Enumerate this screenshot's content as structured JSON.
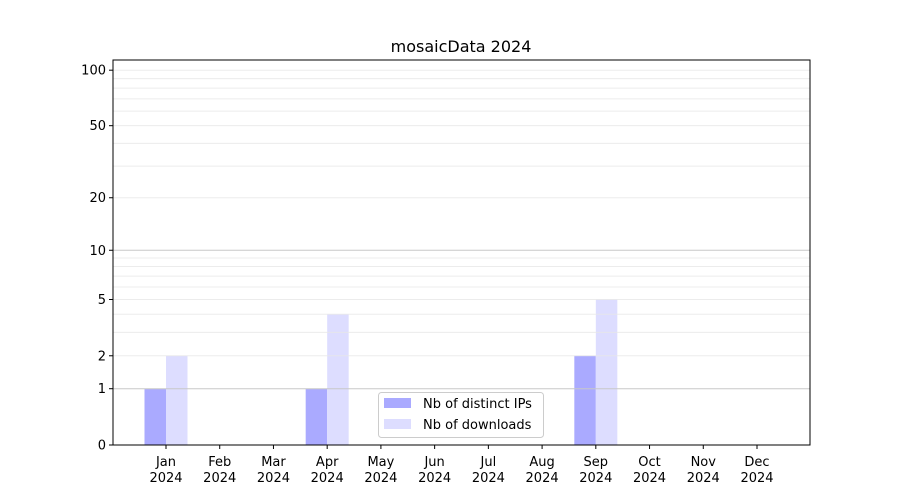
{
  "chart_data": {
    "type": "bar",
    "title": "mosaicData 2024",
    "xlabel": "",
    "ylabel": "",
    "yscale": "log10(1+y)",
    "ylim": [
      0,
      113
    ],
    "yticks": [
      0,
      1,
      2,
      5,
      10,
      20,
      50,
      100
    ],
    "grid": true,
    "legend_position": "lower-center",
    "categories": [
      "Jan\n2024",
      "Feb\n2024",
      "Mar\n2024",
      "Apr\n2024",
      "May\n2024",
      "Jun\n2024",
      "Jul\n2024",
      "Aug\n2024",
      "Sep\n2024",
      "Oct\n2024",
      "Nov\n2024",
      "Dec\n2024"
    ],
    "series": [
      {
        "name": "Nb of distinct IPs",
        "color": "#aaaaff",
        "values": [
          1,
          0,
          0,
          1,
          0,
          0,
          0,
          0,
          2,
          0,
          0,
          0
        ]
      },
      {
        "name": "Nb of downloads",
        "color": "#ddddff",
        "values": [
          2,
          0,
          0,
          4,
          0,
          0,
          0,
          0,
          5,
          0,
          0,
          0
        ]
      }
    ]
  }
}
